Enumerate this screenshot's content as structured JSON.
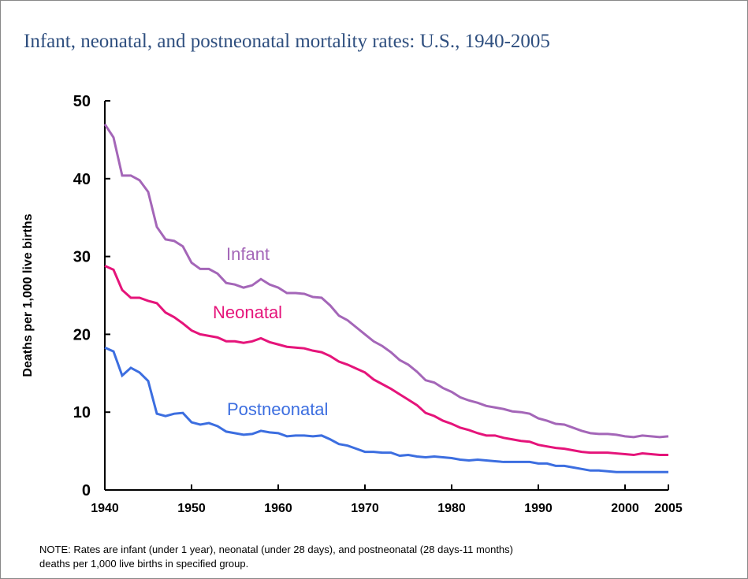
{
  "chart_data": {
    "type": "line",
    "title": "Infant, neonatal, and postneonatal mortality rates:  U.S., 1940-2005",
    "y_label": "Deaths per 1,000 live births",
    "note": [
      "NOTE: Rates are infant (under 1 year), neonatal (under 28 days), and postneonatal (28 days-11 months)",
      "deaths per 1,000 live births in specified group."
    ],
    "x": [
      1940,
      1941,
      1942,
      1943,
      1944,
      1945,
      1946,
      1947,
      1948,
      1949,
      1950,
      1951,
      1952,
      1953,
      1954,
      1955,
      1956,
      1957,
      1958,
      1959,
      1960,
      1961,
      1962,
      1963,
      1964,
      1965,
      1966,
      1967,
      1968,
      1969,
      1970,
      1971,
      1972,
      1973,
      1974,
      1975,
      1976,
      1977,
      1978,
      1979,
      1980,
      1981,
      1982,
      1983,
      1984,
      1985,
      1986,
      1987,
      1988,
      1989,
      1990,
      1991,
      1992,
      1993,
      1994,
      1995,
      1996,
      1997,
      1998,
      1999,
      2000,
      2001,
      2002,
      2003,
      2004,
      2005
    ],
    "series": [
      {
        "name": "Infant",
        "color": "#a466b8",
        "values": [
          47.0,
          45.3,
          40.4,
          40.4,
          39.8,
          38.3,
          33.8,
          32.2,
          32.0,
          31.3,
          29.2,
          28.4,
          28.4,
          27.8,
          26.6,
          26.4,
          26.0,
          26.3,
          27.1,
          26.4,
          26.0,
          25.3,
          25.3,
          25.2,
          24.8,
          24.7,
          23.7,
          22.4,
          21.8,
          20.9,
          20.0,
          19.1,
          18.5,
          17.7,
          16.7,
          16.1,
          15.2,
          14.1,
          13.8,
          13.1,
          12.6,
          11.9,
          11.5,
          11.2,
          10.8,
          10.6,
          10.4,
          10.1,
          10.0,
          9.8,
          9.2,
          8.9,
          8.5,
          8.4,
          8.0,
          7.6,
          7.3,
          7.2,
          7.2,
          7.1,
          6.9,
          6.8,
          7.0,
          6.9,
          6.8,
          6.9
        ]
      },
      {
        "name": "Neonatal",
        "color": "#e5147a",
        "values": [
          28.8,
          28.3,
          25.7,
          24.7,
          24.7,
          24.3,
          24.0,
          22.8,
          22.2,
          21.4,
          20.5,
          20.0,
          19.8,
          19.6,
          19.1,
          19.1,
          18.9,
          19.1,
          19.5,
          19.0,
          18.7,
          18.4,
          18.3,
          18.2,
          17.9,
          17.7,
          17.2,
          16.5,
          16.1,
          15.6,
          15.1,
          14.2,
          13.6,
          13.0,
          12.3,
          11.6,
          10.9,
          9.9,
          9.5,
          8.9,
          8.5,
          8.0,
          7.7,
          7.3,
          7.0,
          7.0,
          6.7,
          6.5,
          6.3,
          6.2,
          5.8,
          5.6,
          5.4,
          5.3,
          5.1,
          4.9,
          4.8,
          4.8,
          4.8,
          4.7,
          4.6,
          4.5,
          4.7,
          4.6,
          4.5,
          4.5
        ]
      },
      {
        "name": "Postneonatal",
        "color": "#3c6ee0",
        "values": [
          18.3,
          17.8,
          14.7,
          15.7,
          15.1,
          14.0,
          9.8,
          9.5,
          9.8,
          9.9,
          8.7,
          8.4,
          8.6,
          8.2,
          7.5,
          7.3,
          7.1,
          7.2,
          7.6,
          7.4,
          7.3,
          6.9,
          7.0,
          7.0,
          6.9,
          7.0,
          6.5,
          5.9,
          5.7,
          5.3,
          4.9,
          4.9,
          4.8,
          4.8,
          4.4,
          4.5,
          4.3,
          4.2,
          4.3,
          4.2,
          4.1,
          3.9,
          3.8,
          3.9,
          3.8,
          3.7,
          3.6,
          3.6,
          3.6,
          3.6,
          3.4,
          3.4,
          3.1,
          3.1,
          2.9,
          2.7,
          2.5,
          2.5,
          2.4,
          2.3,
          2.3,
          2.3,
          2.3,
          2.3,
          2.3,
          2.3
        ]
      }
    ],
    "xlim": [
      1940,
      2005
    ],
    "xticks": [
      1940,
      1950,
      1960,
      1970,
      1980,
      1990,
      2000,
      2005
    ],
    "ylim": [
      0,
      50
    ],
    "yticks": [
      0,
      10,
      20,
      30,
      40,
      50
    ]
  }
}
